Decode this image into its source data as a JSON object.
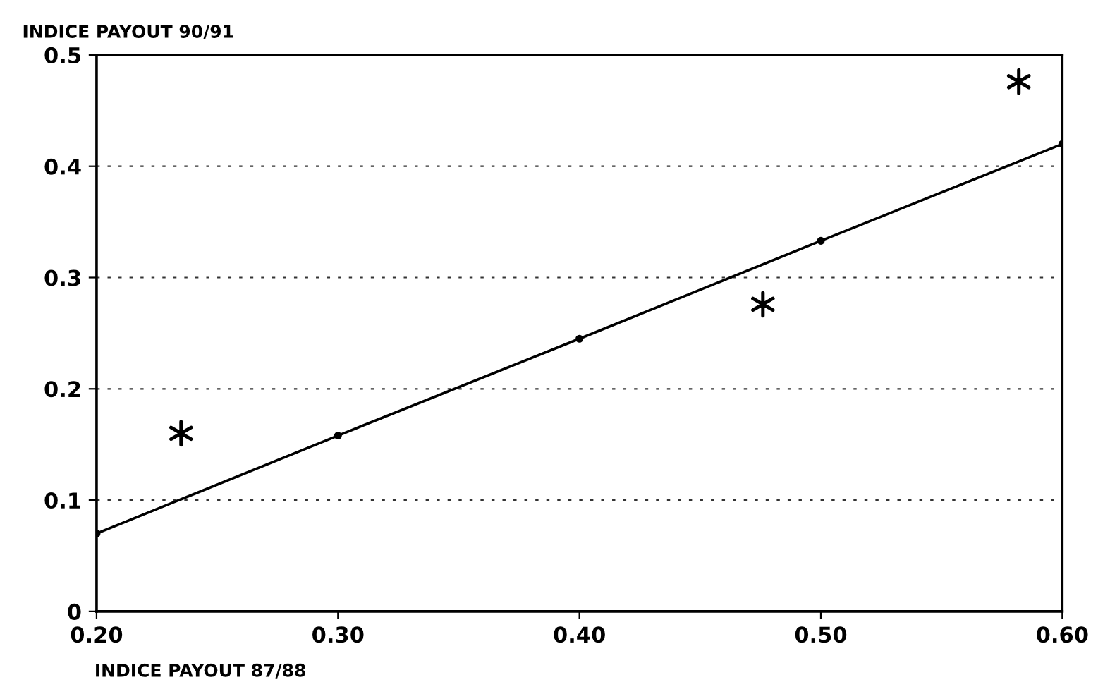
{
  "chart_data": {
    "type": "scatter",
    "xlabel": "INDICE PAYOUT 87/88",
    "ylabel": "INDICE PAYOUT 90/91",
    "xlim": [
      0.2,
      0.6
    ],
    "ylim": [
      0,
      0.5
    ],
    "xticks": [
      {
        "value": 0.2,
        "label": "0.20"
      },
      {
        "value": 0.3,
        "label": "0.30"
      },
      {
        "value": 0.4,
        "label": "0.40"
      },
      {
        "value": 0.5,
        "label": "0.50"
      },
      {
        "value": 0.6,
        "label": "0.60"
      }
    ],
    "yticks": [
      0,
      0.1,
      0.2,
      0.3,
      0.4,
      0.5
    ],
    "grid": "y",
    "legend": false,
    "series": [
      {
        "marker": "cross",
        "color": "#000000",
        "x": [
          0.235,
          0.476,
          0.582
        ],
        "values": [
          0.16,
          0.276,
          0.476
        ]
      },
      {
        "type": "line",
        "marker": "circle",
        "line_style": "solid",
        "color": "#000000",
        "x": [
          0.2,
          0.3,
          0.4,
          0.5,
          0.6
        ],
        "values": [
          0.07,
          0.158,
          0.245,
          0.333,
          0.42
        ]
      }
    ]
  }
}
